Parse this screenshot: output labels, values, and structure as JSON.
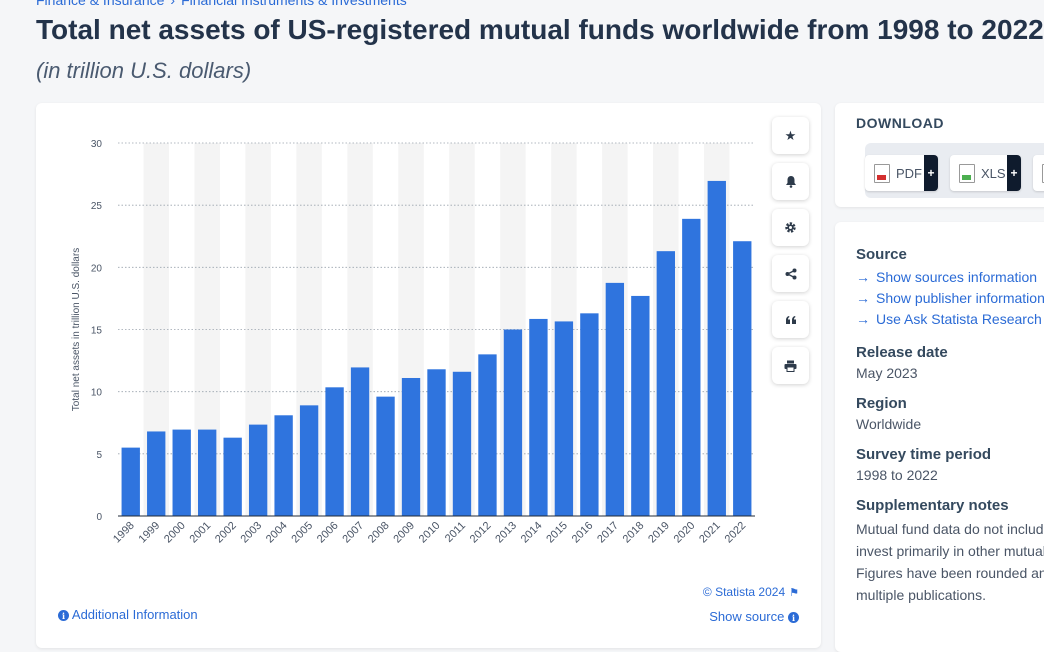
{
  "breadcrumb": [
    "Finance & Insurance",
    "Financial Instruments & Investments"
  ],
  "header": {
    "title": "Total net assets of US-registered mutual funds worldwide from 1998 to 2022",
    "subtitle": "(in trillion U.S. dollars)"
  },
  "toolbar": {
    "buttons": [
      {
        "name": "favorite-icon",
        "glyph": "★"
      },
      {
        "name": "bell-icon",
        "glyph": "🔔"
      },
      {
        "name": "gear-icon",
        "glyph": "⚙"
      },
      {
        "name": "share-icon",
        "glyph": "⋖"
      },
      {
        "name": "quote-icon",
        "glyph": "❝"
      },
      {
        "name": "print-icon",
        "glyph": "⎙"
      }
    ]
  },
  "chart_footer": {
    "credit": "© Statista 2024",
    "show_source": "Show source",
    "additional_info": "Additional Information"
  },
  "download": {
    "title": "DOWNLOAD",
    "pdf": "PDF",
    "xls": "XLS",
    "plus": "+"
  },
  "meta": {
    "source_title": "Source",
    "source_links": [
      "Show sources information",
      "Show publisher information",
      "Use Ask Statista Research Service"
    ],
    "release_title": "Release date",
    "release_value": "May 2023",
    "region_title": "Region",
    "region_value": "Worldwide",
    "survey_title": "Survey time period",
    "survey_value": "1998 to 2022",
    "notes_title": "Supplementary notes",
    "notes_lines": [
      "Mutual fund data do not include",
      "invest primarily in other mutual",
      "Figures have been rounded and",
      "multiple publications."
    ]
  },
  "colors": {
    "bar": "#2f74de",
    "band": "#f4f4f4",
    "accent": "#2b6bd6"
  },
  "chart_data": {
    "type": "bar",
    "title": "",
    "xlabel": "",
    "ylabel": "Total net assets in trillion U.S. dollars",
    "ylim": [
      0,
      30
    ],
    "yticks": [
      0,
      5,
      10,
      15,
      20,
      25,
      30
    ],
    "grid": true,
    "categories": [
      "1998",
      "1999",
      "2000",
      "2001",
      "2002",
      "2003",
      "2004",
      "2005",
      "2006",
      "2007",
      "2008",
      "2009",
      "2010",
      "2011",
      "2012",
      "2013",
      "2014",
      "2015",
      "2016",
      "2017",
      "2018",
      "2019",
      "2020",
      "2021",
      "2022"
    ],
    "values": [
      5.5,
      6.8,
      6.95,
      6.95,
      6.3,
      7.35,
      8.1,
      8.9,
      10.35,
      11.95,
      9.6,
      11.1,
      11.8,
      11.6,
      13.0,
      15.0,
      15.85,
      15.65,
      16.3,
      18.75,
      17.7,
      21.3,
      23.9,
      26.95,
      22.1
    ]
  }
}
